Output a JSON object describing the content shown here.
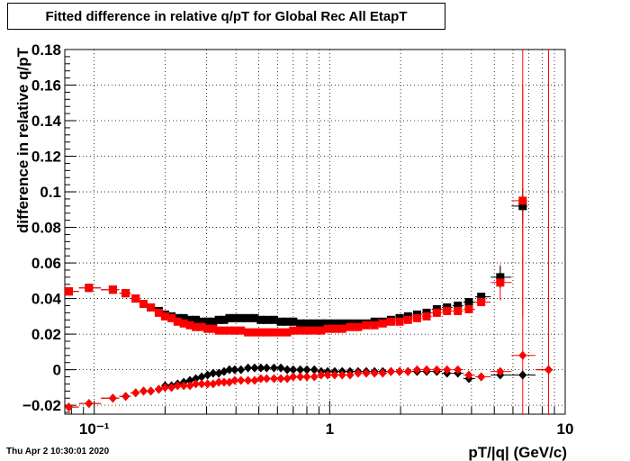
{
  "title": "Fitted difference in relative q/pT for Global Rec All EtapT",
  "timestamp": "Thu Apr  2 10:30:01 2020",
  "chart_data": {
    "type": "scatter",
    "title": "Fitted difference in relative q/pT for Global Rec All EtapT",
    "xlabel": "pT/|q| (GeV/c)",
    "ylabel": "difference in relative q/pT",
    "xscale": "log",
    "xlim": [
      0.075,
      10
    ],
    "ylim": [
      -0.025,
      0.18
    ],
    "grid": true,
    "yticks": [
      -0.02,
      0,
      0.02,
      0.04,
      0.06,
      0.08,
      0.1,
      0.12,
      0.14,
      0.16,
      0.18
    ],
    "ytick_labels": [
      "−0.02",
      "0",
      "0.02",
      "0.04",
      "0.06",
      "0.08",
      "0.1",
      "0.12",
      "0.14",
      "0.16",
      "0.18"
    ],
    "xticks": [
      0.1,
      1,
      10
    ],
    "xtick_labels": [
      "10⁻¹",
      "1",
      "10"
    ],
    "series": [
      {
        "marker": "square",
        "color": "#000000",
        "points": [
          [
            0.078,
            0.044
          ],
          [
            0.095,
            0.046
          ],
          [
            0.12,
            0.045
          ],
          [
            0.136,
            0.043
          ],
          [
            0.15,
            0.04
          ],
          [
            0.162,
            0.037
          ],
          [
            0.174,
            0.035
          ],
          [
            0.188,
            0.033
          ],
          [
            0.2,
            0.031
          ],
          [
            0.213,
            0.03
          ],
          [
            0.226,
            0.029
          ],
          [
            0.24,
            0.029
          ],
          [
            0.255,
            0.028
          ],
          [
            0.27,
            0.028
          ],
          [
            0.286,
            0.027
          ],
          [
            0.303,
            0.027
          ],
          [
            0.32,
            0.027
          ],
          [
            0.338,
            0.028
          ],
          [
            0.356,
            0.028
          ],
          [
            0.375,
            0.029
          ],
          [
            0.395,
            0.029
          ],
          [
            0.42,
            0.029
          ],
          [
            0.45,
            0.029
          ],
          [
            0.48,
            0.029
          ],
          [
            0.51,
            0.028
          ],
          [
            0.54,
            0.028
          ],
          [
            0.58,
            0.028
          ],
          [
            0.62,
            0.027
          ],
          [
            0.66,
            0.027
          ],
          [
            0.7,
            0.027
          ],
          [
            0.75,
            0.026
          ],
          [
            0.8,
            0.026
          ],
          [
            0.86,
            0.026
          ],
          [
            0.92,
            0.026
          ],
          [
            0.98,
            0.026
          ],
          [
            1.05,
            0.026
          ],
          [
            1.13,
            0.026
          ],
          [
            1.22,
            0.026
          ],
          [
            1.32,
            0.026
          ],
          [
            1.43,
            0.026
          ],
          [
            1.55,
            0.027
          ],
          [
            1.68,
            0.027
          ],
          [
            1.82,
            0.028
          ],
          [
            1.98,
            0.029
          ],
          [
            2.15,
            0.03
          ],
          [
            2.35,
            0.031
          ],
          [
            2.58,
            0.032
          ],
          [
            2.85,
            0.034
          ],
          [
            3.15,
            0.035
          ],
          [
            3.5,
            0.036
          ],
          [
            3.9,
            0.038
          ],
          [
            4.4,
            0.041
          ],
          [
            5.3,
            0.052
          ],
          [
            6.6,
            0.092
          ]
        ]
      },
      {
        "marker": "square",
        "color": "#ff0000",
        "points": [
          [
            0.078,
            0.044
          ],
          [
            0.095,
            0.046
          ],
          [
            0.12,
            0.045
          ],
          [
            0.136,
            0.043
          ],
          [
            0.15,
            0.04
          ],
          [
            0.162,
            0.037
          ],
          [
            0.174,
            0.035
          ],
          [
            0.188,
            0.032
          ],
          [
            0.2,
            0.03
          ],
          [
            0.213,
            0.029
          ],
          [
            0.226,
            0.027
          ],
          [
            0.24,
            0.026
          ],
          [
            0.255,
            0.025
          ],
          [
            0.27,
            0.024
          ],
          [
            0.286,
            0.024
          ],
          [
            0.303,
            0.023
          ],
          [
            0.32,
            0.023
          ],
          [
            0.338,
            0.022
          ],
          [
            0.356,
            0.022
          ],
          [
            0.375,
            0.022
          ],
          [
            0.395,
            0.022
          ],
          [
            0.42,
            0.022
          ],
          [
            0.45,
            0.021
          ],
          [
            0.48,
            0.021
          ],
          [
            0.51,
            0.021
          ],
          [
            0.54,
            0.021
          ],
          [
            0.58,
            0.021
          ],
          [
            0.62,
            0.021
          ],
          [
            0.66,
            0.021
          ],
          [
            0.7,
            0.022
          ],
          [
            0.75,
            0.022
          ],
          [
            0.8,
            0.022
          ],
          [
            0.86,
            0.022
          ],
          [
            0.92,
            0.022
          ],
          [
            0.98,
            0.023
          ],
          [
            1.05,
            0.023
          ],
          [
            1.13,
            0.023
          ],
          [
            1.22,
            0.024
          ],
          [
            1.32,
            0.024
          ],
          [
            1.43,
            0.025
          ],
          [
            1.55,
            0.025
          ],
          [
            1.68,
            0.026
          ],
          [
            1.82,
            0.027
          ],
          [
            1.98,
            0.027
          ],
          [
            2.15,
            0.028
          ],
          [
            2.35,
            0.029
          ],
          [
            2.58,
            0.03
          ],
          [
            2.85,
            0.032
          ],
          [
            3.15,
            0.033
          ],
          [
            3.5,
            0.033
          ],
          [
            3.9,
            0.034
          ],
          [
            4.4,
            0.038
          ],
          [
            5.3,
            0.049
          ],
          [
            6.6,
            0.095
          ]
        ]
      },
      {
        "marker": "diamond",
        "color": "#000000",
        "points": [
          [
            0.078,
            -0.021
          ],
          [
            0.095,
            -0.019
          ],
          [
            0.12,
            -0.016
          ],
          [
            0.136,
            -0.015
          ],
          [
            0.15,
            -0.013
          ],
          [
            0.162,
            -0.012
          ],
          [
            0.174,
            -0.012
          ],
          [
            0.188,
            -0.011
          ],
          [
            0.2,
            -0.009
          ],
          [
            0.213,
            -0.009
          ],
          [
            0.226,
            -0.008
          ],
          [
            0.24,
            -0.007
          ],
          [
            0.255,
            -0.006
          ],
          [
            0.27,
            -0.005
          ],
          [
            0.286,
            -0.004
          ],
          [
            0.303,
            -0.003
          ],
          [
            0.32,
            -0.002
          ],
          [
            0.338,
            -0.002
          ],
          [
            0.356,
            -0.001
          ],
          [
            0.375,
            0.0
          ],
          [
            0.395,
            0.0
          ],
          [
            0.42,
            0.0
          ],
          [
            0.45,
            0.001
          ],
          [
            0.48,
            0.001
          ],
          [
            0.51,
            0.001
          ],
          [
            0.54,
            0.001
          ],
          [
            0.58,
            0.001
          ],
          [
            0.62,
            0.001
          ],
          [
            0.66,
            0.0
          ],
          [
            0.7,
            0.0
          ],
          [
            0.75,
            0.0
          ],
          [
            0.8,
            0.0
          ],
          [
            0.86,
            0.0
          ],
          [
            0.92,
            -0.001
          ],
          [
            0.98,
            -0.001
          ],
          [
            1.05,
            -0.001
          ],
          [
            1.13,
            -0.001
          ],
          [
            1.22,
            -0.001
          ],
          [
            1.32,
            -0.001
          ],
          [
            1.43,
            -0.001
          ],
          [
            1.55,
            -0.001
          ],
          [
            1.68,
            -0.001
          ],
          [
            1.82,
            -0.001
          ],
          [
            1.98,
            -0.001
          ],
          [
            2.15,
            -0.001
          ],
          [
            2.35,
            -0.001
          ],
          [
            2.58,
            -0.001
          ],
          [
            2.85,
            -0.001
          ],
          [
            3.15,
            -0.002
          ],
          [
            3.5,
            -0.002
          ],
          [
            3.9,
            -0.005
          ],
          [
            4.4,
            -0.004
          ],
          [
            5.3,
            -0.003
          ],
          [
            6.6,
            -0.003
          ],
          [
            8.5,
            0.0
          ]
        ]
      },
      {
        "marker": "diamond",
        "color": "#ff0000",
        "points": [
          [
            0.078,
            -0.021
          ],
          [
            0.095,
            -0.019
          ],
          [
            0.12,
            -0.016
          ],
          [
            0.136,
            -0.015
          ],
          [
            0.15,
            -0.013
          ],
          [
            0.162,
            -0.012
          ],
          [
            0.174,
            -0.012
          ],
          [
            0.188,
            -0.011
          ],
          [
            0.2,
            -0.01
          ],
          [
            0.213,
            -0.01
          ],
          [
            0.226,
            -0.009
          ],
          [
            0.24,
            -0.009
          ],
          [
            0.255,
            -0.009
          ],
          [
            0.27,
            -0.008
          ],
          [
            0.286,
            -0.008
          ],
          [
            0.303,
            -0.008
          ],
          [
            0.32,
            -0.008
          ],
          [
            0.338,
            -0.007
          ],
          [
            0.356,
            -0.007
          ],
          [
            0.375,
            -0.007
          ],
          [
            0.395,
            -0.006
          ],
          [
            0.42,
            -0.006
          ],
          [
            0.45,
            -0.006
          ],
          [
            0.48,
            -0.006
          ],
          [
            0.51,
            -0.005
          ],
          [
            0.54,
            -0.005
          ],
          [
            0.58,
            -0.005
          ],
          [
            0.62,
            -0.005
          ],
          [
            0.66,
            -0.005
          ],
          [
            0.7,
            -0.004
          ],
          [
            0.75,
            -0.004
          ],
          [
            0.8,
            -0.004
          ],
          [
            0.86,
            -0.004
          ],
          [
            0.92,
            -0.003
          ],
          [
            0.98,
            -0.003
          ],
          [
            1.05,
            -0.003
          ],
          [
            1.13,
            -0.003
          ],
          [
            1.22,
            -0.003
          ],
          [
            1.32,
            -0.002
          ],
          [
            1.43,
            -0.002
          ],
          [
            1.55,
            -0.002
          ],
          [
            1.68,
            -0.002
          ],
          [
            1.82,
            -0.001
          ],
          [
            1.98,
            -0.001
          ],
          [
            2.15,
            -0.001
          ],
          [
            2.35,
            0.0
          ],
          [
            2.58,
            0.0
          ],
          [
            2.85,
            0.0
          ],
          [
            3.15,
            0.0
          ],
          [
            3.5,
            0.0
          ],
          [
            3.9,
            -0.003
          ],
          [
            4.4,
            -0.004
          ],
          [
            5.3,
            -0.001
          ],
          [
            6.6,
            0.008
          ],
          [
            8.5,
            0.0
          ]
        ]
      }
    ],
    "error_bars": [
      {
        "color": "#ff0000",
        "x": 6.6,
        "y": 0.095,
        "yerr": 0.065
      },
      {
        "color": "#000000",
        "x": 6.6,
        "y": 0.092,
        "yerr": 0.01
      },
      {
        "color": "#ff0000",
        "x": 5.3,
        "y": 0.049,
        "yerr": 0.01
      },
      {
        "color": "#000000",
        "x": 5.3,
        "y": 0.052,
        "yerr": 0.006
      },
      {
        "color": "#ff0000",
        "x": 8.5,
        "y": 0.0,
        "yerr": 0.2
      },
      {
        "color": "#ff0000",
        "x": 6.6,
        "y": 0.008,
        "yerr": 0.2
      }
    ]
  }
}
